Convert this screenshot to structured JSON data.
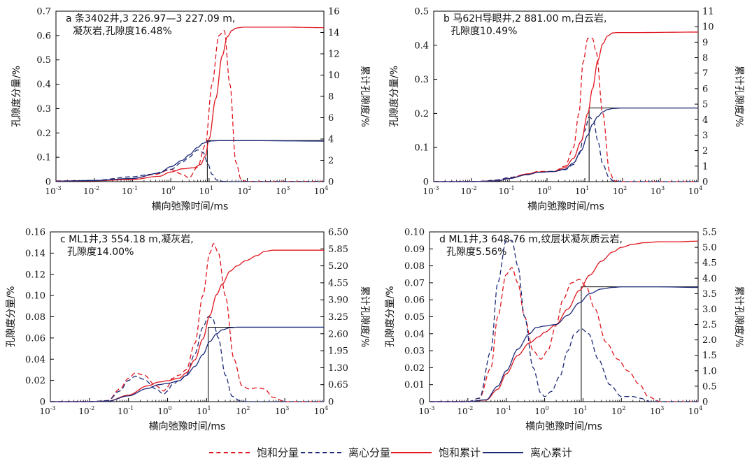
{
  "colors": {
    "saturated": "#e0161e",
    "centrifuged": "#1c2a78",
    "cutoff": "#000000"
  },
  "legend": {
    "sat_frac": "饱和分量",
    "cen_frac": "离心分量",
    "sat_cum": "饱和累计",
    "cen_cum": "离心累计"
  },
  "chart_data": [
    {
      "type": "line",
      "annotation": [
        "a 条3402井,3 226.97—3 227.09 m,",
        "凝灰岩,孔隙度16.48%"
      ],
      "xlabel": "横向弛豫时间/ms",
      "ylabel_left": "孔隙度分量/%",
      "ylabel_right": "累计孔隙度/%",
      "xscale": "log",
      "xlim_exp": [
        -3,
        4
      ],
      "ylim_left": [
        0,
        0.7
      ],
      "yticks_left": [
        0,
        0.1,
        0.2,
        0.3,
        0.4,
        0.5,
        0.6,
        0.7
      ],
      "ylim_right": [
        0,
        16
      ],
      "yticks_right": [
        0,
        2,
        4,
        6,
        8,
        10,
        12,
        14,
        16
      ],
      "t2_cutoff_ms": 9,
      "series": [
        {
          "name": "饱和分量",
          "axis": "left",
          "style": "dashed",
          "color": "#e0161e",
          "x": [
            0.001,
            0.01,
            0.1,
            0.4,
            1,
            2,
            3,
            5,
            8,
            12,
            18,
            25,
            35,
            50,
            70,
            100,
            1000,
            10000
          ],
          "y": [
            0.003,
            0.004,
            0.012,
            0.03,
            0.05,
            0.03,
            0.015,
            0.06,
            0.15,
            0.4,
            0.6,
            0.62,
            0.4,
            0.08,
            0.005,
            0.001,
            0.001,
            0.001
          ]
        },
        {
          "name": "离心分量",
          "axis": "left",
          "style": "dashed",
          "color": "#1c2a78",
          "x": [
            0.001,
            0.01,
            0.1,
            0.3,
            1,
            2,
            3,
            5,
            7,
            9,
            12,
            16,
            25,
            40,
            100,
            1000,
            10000
          ],
          "y": [
            0.002,
            0.005,
            0.02,
            0.03,
            0.05,
            0.08,
            0.1,
            0.13,
            0.12,
            0.08,
            0.03,
            0.006,
            0.001,
            0.0,
            0.0,
            0.0,
            0.0
          ]
        },
        {
          "name": "饱和累计",
          "axis": "right",
          "style": "solid",
          "color": "#e0161e",
          "x": [
            0.001,
            0.01,
            0.1,
            0.5,
            1,
            2,
            4,
            6,
            8,
            10,
            15,
            22,
            30,
            40,
            50,
            60,
            80,
            100,
            1000,
            10000
          ],
          "y": [
            0.05,
            0.08,
            0.2,
            0.5,
            0.9,
            1.2,
            1.3,
            1.6,
            2.4,
            4.0,
            7.8,
            11.8,
            13.6,
            14.2,
            14.4,
            14.45,
            14.5,
            14.5,
            14.5,
            14.45
          ]
        },
        {
          "name": "离心累计",
          "axis": "right",
          "style": "solid",
          "color": "#1c2a78",
          "x": [
            0.001,
            0.01,
            0.1,
            0.5,
            1,
            2,
            3,
            5,
            7,
            9,
            12,
            20,
            100,
            10000
          ],
          "y": [
            0.05,
            0.1,
            0.3,
            0.8,
            1.4,
            2.0,
            2.5,
            3.2,
            3.6,
            3.75,
            3.82,
            3.85,
            3.85,
            3.8
          ]
        }
      ]
    },
    {
      "type": "line",
      "annotation": [
        "b 马62H导眼井,2 881.00 m,白云岩,",
        "孔隙度10.49%"
      ],
      "xlabel": "横向弛豫时间/ms",
      "ylabel_left": "孔隙度分量/%",
      "ylabel_right": "累计孔隙度/%",
      "xscale": "log",
      "xlim_exp": [
        -3,
        4
      ],
      "ylim_left": [
        0,
        0.5
      ],
      "yticks_left": [
        0,
        0.1,
        0.2,
        0.3,
        0.4,
        0.5
      ],
      "ylim_right": [
        0,
        11
      ],
      "yticks_right": [
        0,
        1,
        2,
        3,
        4,
        5,
        6,
        7,
        8,
        9,
        10,
        11
      ],
      "t2_cutoff_ms": 13,
      "series": [
        {
          "name": "饱和分量",
          "axis": "left",
          "style": "dashed",
          "color": "#e0161e",
          "x": [
            0.001,
            0.01,
            0.02,
            0.05,
            0.1,
            0.3,
            0.6,
            1.5,
            3,
            5,
            7,
            9,
            12,
            16,
            20,
            30,
            45,
            60,
            100,
            10000
          ],
          "y": [
            0.0,
            0.0,
            0.001,
            0.005,
            0.012,
            0.022,
            0.03,
            0.03,
            0.045,
            0.1,
            0.2,
            0.35,
            0.42,
            0.42,
            0.38,
            0.2,
            0.03,
            0.002,
            0.0,
            0.0
          ]
        },
        {
          "name": "离心分量",
          "axis": "left",
          "style": "dashed",
          "color": "#1c2a78",
          "x": [
            0.001,
            0.01,
            0.02,
            0.05,
            0.1,
            0.3,
            0.6,
            1.5,
            3,
            5,
            7,
            10,
            13,
            17,
            22,
            30,
            45,
            60,
            100,
            10000
          ],
          "y": [
            0.0,
            0.0,
            0.001,
            0.005,
            0.012,
            0.02,
            0.028,
            0.03,
            0.035,
            0.05,
            0.08,
            0.15,
            0.19,
            0.18,
            0.12,
            0.05,
            0.01,
            0.001,
            0.0,
            0.0
          ]
        },
        {
          "name": "饱和累计",
          "axis": "right",
          "style": "solid",
          "color": "#e0161e",
          "x": [
            0.001,
            0.01,
            0.05,
            0.1,
            0.3,
            0.6,
            1.5,
            3,
            5,
            8,
            12,
            16,
            22,
            30,
            40,
            55,
            80,
            200,
            10000
          ],
          "y": [
            0.0,
            0.0,
            0.05,
            0.2,
            0.5,
            0.62,
            0.65,
            0.9,
            1.5,
            2.6,
            4.4,
            6.0,
            7.8,
            8.9,
            9.4,
            9.6,
            9.62,
            9.62,
            9.65
          ]
        },
        {
          "name": "离心累计",
          "axis": "right",
          "style": "solid",
          "color": "#1c2a78",
          "x": [
            0.001,
            0.01,
            0.05,
            0.1,
            0.3,
            0.6,
            1.5,
            3,
            5,
            8,
            12,
            16,
            22,
            30,
            40,
            55,
            100,
            10000
          ],
          "y": [
            0.0,
            0.0,
            0.05,
            0.2,
            0.45,
            0.6,
            0.65,
            0.8,
            1.2,
            2.0,
            3.0,
            3.7,
            4.2,
            4.5,
            4.65,
            4.72,
            4.75,
            4.75
          ]
        }
      ]
    },
    {
      "type": "line",
      "annotation": [
        "c ML1井,3 554.18 m,凝灰岩,",
        "孔隙度14.00%"
      ],
      "xlabel": "横向弛豫时间/ms",
      "ylabel_left": "孔隙度分量/%",
      "ylabel_right": "累计孔隙度/%",
      "xscale": "log",
      "xlim_exp": [
        -3,
        4
      ],
      "ylim_left": [
        0,
        0.16
      ],
      "yticks_left": [
        0,
        0.02,
        0.04,
        0.06,
        0.08,
        0.1,
        0.12,
        0.14,
        0.16
      ],
      "ylim_right": [
        0,
        6.5
      ],
      "yticks_right": [
        0,
        0.65,
        1.3,
        1.95,
        2.6,
        3.25,
        3.9,
        4.55,
        5.2,
        5.85,
        6.5
      ],
      "yticklabels_right": [
        "0",
        "0.65",
        "1.30",
        "1.95",
        "2.60",
        "3.25",
        "3.90",
        "4.55",
        "5.20",
        "5.85",
        "6.50"
      ],
      "t2_cutoff_ms": 11,
      "series": [
        {
          "name": "饱和分量",
          "axis": "left",
          "style": "dashed",
          "color": "#e0161e",
          "x": [
            0.001,
            0.01,
            0.03,
            0.06,
            0.1,
            0.15,
            0.25,
            0.5,
            0.8,
            1.0,
            1.3,
            2,
            3,
            5,
            8,
            12,
            15,
            20,
            30,
            50,
            80,
            120,
            200,
            300,
            500,
            1000,
            10000
          ],
          "y": [
            0.0,
            0.0,
            0.001,
            0.012,
            0.022,
            0.027,
            0.025,
            0.015,
            0.01,
            0.014,
            0.022,
            0.025,
            0.03,
            0.055,
            0.1,
            0.14,
            0.149,
            0.14,
            0.1,
            0.04,
            0.015,
            0.012,
            0.013,
            0.012,
            0.004,
            0.0,
            0.0
          ]
        },
        {
          "name": "离心分量",
          "axis": "left",
          "style": "dashed",
          "color": "#1c2a78",
          "x": [
            0.001,
            0.01,
            0.03,
            0.06,
            0.1,
            0.15,
            0.25,
            0.5,
            0.8,
            1.0,
            1.3,
            2,
            3,
            5,
            8,
            11,
            14,
            20,
            30,
            45,
            70,
            100,
            10000
          ],
          "y": [
            0.0,
            0.0,
            0.001,
            0.01,
            0.02,
            0.024,
            0.021,
            0.012,
            0.007,
            0.01,
            0.016,
            0.02,
            0.025,
            0.045,
            0.07,
            0.08,
            0.079,
            0.06,
            0.025,
            0.005,
            0.001,
            0.0,
            0.0
          ]
        },
        {
          "name": "饱和累计",
          "axis": "right",
          "style": "solid",
          "color": "#e0161e",
          "x": [
            0.001,
            0.01,
            0.03,
            0.1,
            0.3,
            0.6,
            1,
            2,
            3,
            5,
            8,
            12,
            18,
            25,
            40,
            60,
            100,
            200,
            300,
            500,
            1000,
            10000
          ],
          "y": [
            0.0,
            0.0,
            0.02,
            0.25,
            0.6,
            0.75,
            0.8,
            0.9,
            1.1,
            1.6,
            2.4,
            3.3,
            4.1,
            4.5,
            5.0,
            5.2,
            5.4,
            5.6,
            5.75,
            5.8,
            5.8,
            5.8
          ]
        },
        {
          "name": "离心累计",
          "axis": "right",
          "style": "solid",
          "color": "#1c2a78",
          "x": [
            0.001,
            0.01,
            0.03,
            0.1,
            0.3,
            0.6,
            1,
            2,
            3,
            5,
            8,
            12,
            18,
            25,
            40,
            60,
            100,
            10000
          ],
          "y": [
            0.0,
            0.0,
            0.02,
            0.22,
            0.5,
            0.65,
            0.7,
            0.8,
            1.0,
            1.35,
            1.8,
            2.3,
            2.6,
            2.75,
            2.83,
            2.85,
            2.85,
            2.85
          ]
        }
      ]
    },
    {
      "type": "line",
      "annotation": [
        "d ML1井,3 648.76 m,纹层状凝灰质云岩,",
        "孔隙度5.56%"
      ],
      "xlabel": "横向弛豫时间/ms",
      "ylabel_left": "孔隙度分量/%",
      "ylabel_right": "累计孔隙度/%",
      "xscale": "log",
      "xlim_exp": [
        -3,
        4
      ],
      "ylim_left": [
        0,
        0.1
      ],
      "yticks_left": [
        0,
        0.01,
        0.02,
        0.03,
        0.04,
        0.05,
        0.06,
        0.07,
        0.08,
        0.09,
        0.1
      ],
      "ylim_right": [
        0,
        5.5
      ],
      "yticks_right": [
        0,
        0.5,
        1.0,
        1.5,
        2.0,
        2.5,
        3.0,
        3.5,
        4.0,
        4.5,
        5.0,
        5.5
      ],
      "t2_cutoff_ms": 9,
      "series": [
        {
          "name": "饱和分量",
          "axis": "left",
          "style": "dashed",
          "color": "#e0161e",
          "x": [
            0.001,
            0.01,
            0.02,
            0.04,
            0.06,
            0.1,
            0.14,
            0.2,
            0.3,
            0.5,
            0.8,
            1.2,
            2,
            3,
            5,
            8,
            12,
            20,
            40,
            80,
            150,
            300,
            500,
            1000,
            10000
          ],
          "y": [
            0.0,
            0.0,
            0.002,
            0.02,
            0.05,
            0.075,
            0.079,
            0.07,
            0.05,
            0.03,
            0.025,
            0.03,
            0.045,
            0.06,
            0.07,
            0.072,
            0.068,
            0.055,
            0.035,
            0.025,
            0.018,
            0.01,
            0.003,
            0.0,
            0.0
          ]
        },
        {
          "name": "离心分量",
          "axis": "left",
          "style": "dashed",
          "color": "#1c2a78",
          "x": [
            0.001,
            0.01,
            0.02,
            0.04,
            0.06,
            0.1,
            0.14,
            0.2,
            0.3,
            0.5,
            0.8,
            1.0,
            1.5,
            2.5,
            4,
            6,
            9,
            14,
            25,
            50,
            100,
            200,
            300,
            600,
            1000,
            10000
          ],
          "y": [
            0.0,
            0.0,
            0.002,
            0.03,
            0.07,
            0.095,
            0.095,
            0.08,
            0.05,
            0.02,
            0.005,
            0.003,
            0.006,
            0.015,
            0.03,
            0.04,
            0.043,
            0.04,
            0.025,
            0.01,
            0.003,
            0.003,
            0.002,
            0.0,
            0.0,
            0.0
          ]
        },
        {
          "name": "饱和累计",
          "axis": "right",
          "style": "solid",
          "color": "#e0161e",
          "x": [
            0.001,
            0.01,
            0.03,
            0.06,
            0.1,
            0.2,
            0.4,
            0.7,
            1,
            2,
            4,
            8,
            15,
            30,
            60,
            100,
            200,
            400,
            1000,
            3000,
            10000
          ],
          "y": [
            0.0,
            0.0,
            0.05,
            0.4,
            0.9,
            1.5,
            1.9,
            2.1,
            2.25,
            2.5,
            3.0,
            3.6,
            4.1,
            4.55,
            4.85,
            5.0,
            5.1,
            5.15,
            5.18,
            5.18,
            5.2
          ]
        },
        {
          "name": "离心累计",
          "axis": "right",
          "style": "solid",
          "color": "#1c2a78",
          "x": [
            0.001,
            0.01,
            0.03,
            0.06,
            0.1,
            0.2,
            0.4,
            0.6,
            1,
            2,
            4,
            8,
            15,
            30,
            60,
            100,
            200,
            1000,
            10000
          ],
          "y": [
            0.0,
            0.0,
            0.06,
            0.5,
            1.0,
            1.7,
            2.2,
            2.4,
            2.45,
            2.5,
            2.8,
            3.2,
            3.5,
            3.65,
            3.7,
            3.72,
            3.72,
            3.72,
            3.7
          ]
        }
      ]
    }
  ]
}
